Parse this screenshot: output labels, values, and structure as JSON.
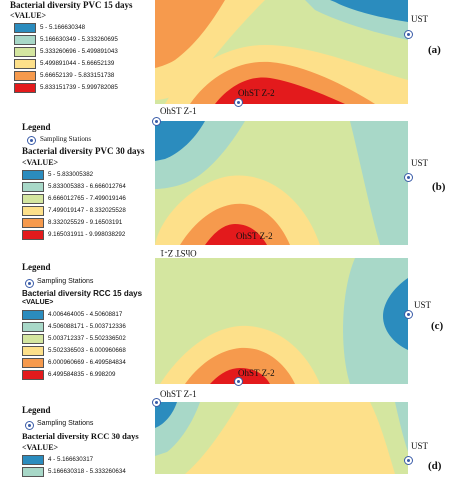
{
  "panels": [
    {
      "id": "a",
      "letter": "(a)",
      "legend_title": "",
      "stations_label": "",
      "layer_title": "Bacterial diversity PVC 15 days",
      "value_label": "<VALUE>",
      "classes": [
        {
          "range": "5 - 5.166630348",
          "color": "#2b8cbe"
        },
        {
          "range": "5.166630349 - 5.333260695",
          "color": "#a8d8c8"
        },
        {
          "range": "5.333260696 - 5.499891043",
          "color": "#d4e6a0"
        },
        {
          "range": "5.499891044 - 5.66652139",
          "color": "#fde08a"
        },
        {
          "range": "5.66652139 - 5.833151738",
          "color": "#f69a4d"
        },
        {
          "range": "5.833151739 - 5.999782085",
          "color": "#e31a1c"
        }
      ],
      "stations": [
        "UST",
        "OhST Z-2"
      ]
    },
    {
      "id": "b",
      "letter": "(b)",
      "legend_title": "Legend",
      "stations_label": "Sampling Stations",
      "layer_title": "Bacterial diversity PVC 30 days",
      "value_label": "<VALUE>",
      "classes": [
        {
          "range": "5 - 5.833005382",
          "color": "#2b8cbe"
        },
        {
          "range": "5.833005383 - 6.666012764",
          "color": "#a8d8c8"
        },
        {
          "range": "6.666012765 - 7.499019146",
          "color": "#d4e6a0"
        },
        {
          "range": "7.499019147 - 8.332025528",
          "color": "#fde08a"
        },
        {
          "range": "8.332025529 - 9.16503191",
          "color": "#f69a4d"
        },
        {
          "range": "9.165031911 - 9.998038292",
          "color": "#e31a1c"
        }
      ],
      "stations": [
        "OhST Z-1",
        "UST",
        "OhST Z-2"
      ]
    },
    {
      "id": "c",
      "letter": "(c)",
      "legend_title": "Legend",
      "stations_label": "Sampling Stations",
      "layer_title": "Bacterial diversity RCC 15 days",
      "value_label": "<VALUE>",
      "classes": [
        {
          "range": "4.006464005 - 4.50608817",
          "color": "#2b8cbe"
        },
        {
          "range": "4.506088171 - 5.003712336",
          "color": "#a8d8c8"
        },
        {
          "range": "5.003712337 - 5.502336502",
          "color": "#d4e6a0"
        },
        {
          "range": "5.502336503 - 6.000960668",
          "color": "#fde08a"
        },
        {
          "range": "6.000960669 - 6.499584834",
          "color": "#f69a4d"
        },
        {
          "range": "6.499584835 - 6.998209",
          "color": "#e31a1c"
        }
      ],
      "stations": [
        "OhST Z-1",
        "UST",
        "OhST Z-2"
      ]
    },
    {
      "id": "d",
      "letter": "(d)",
      "legend_title": "Legend",
      "stations_label": "Sampling Stations",
      "layer_title": "Bacterial diversity RCC 30 days",
      "value_label": "<VALUE>",
      "classes": [
        {
          "range": "4 - 5.166630317",
          "color": "#2b8cbe"
        },
        {
          "range": "5.166630318 - 5.333260634",
          "color": "#a8d8c8"
        }
      ],
      "stations": [
        "OhST Z-1",
        "UST"
      ]
    }
  ]
}
